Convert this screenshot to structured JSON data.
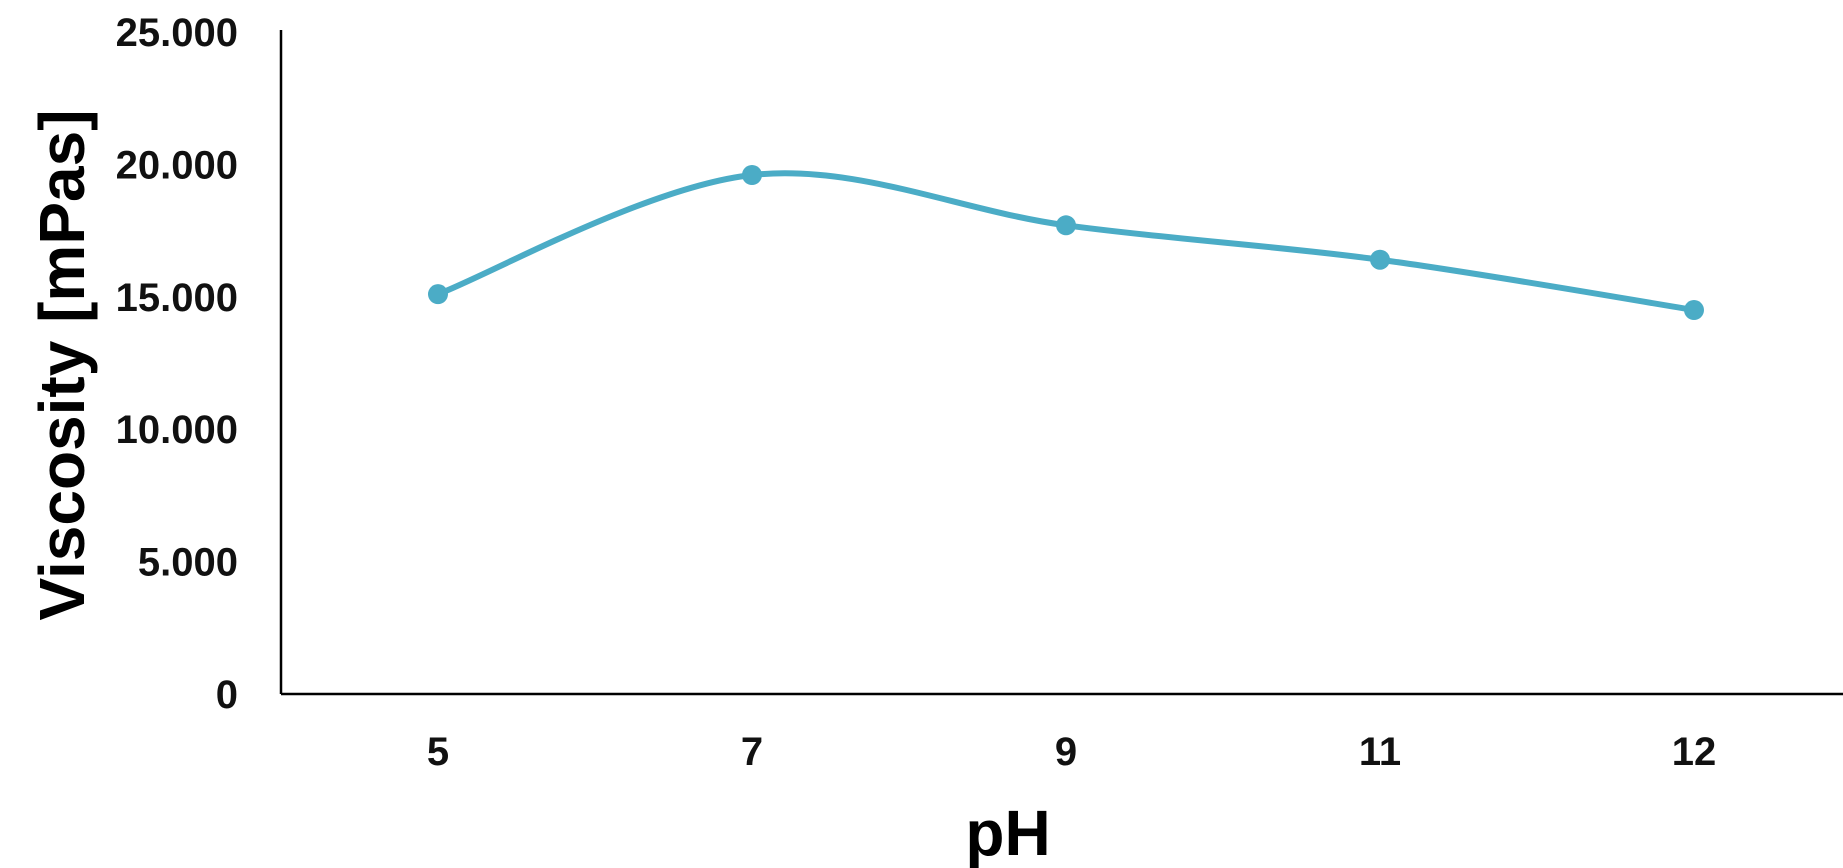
{
  "chart_data": {
    "type": "line",
    "categories": [
      "5",
      "7",
      "9",
      "11",
      "12"
    ],
    "series": [
      {
        "values": [
          15100,
          19600,
          17700,
          16400,
          14500
        ]
      }
    ],
    "xlabel": "pH",
    "ylabel": "Viscosity [mPas]",
    "ylim": [
      0,
      25000
    ],
    "yticks": [
      0,
      5000,
      10000,
      15000,
      20000,
      25000
    ],
    "ytick_labels": [
      "0",
      "5.000",
      "10.000",
      "15.000",
      "20.000",
      "25.000"
    ],
    "smooth": true,
    "markers": true,
    "grid": false,
    "legend": "none",
    "colors": {
      "series": "#4bacc6"
    }
  }
}
